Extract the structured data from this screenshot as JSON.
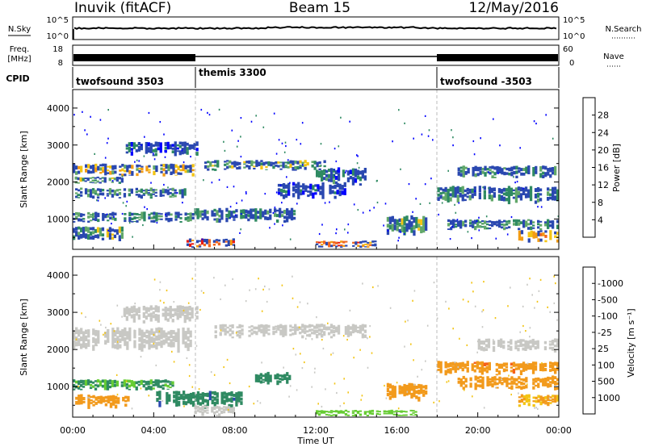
{
  "header": {
    "station": "Inuvik (fitACF)",
    "beam": "Beam 15",
    "date": "12/May/2016"
  },
  "summary_panels": {
    "nsky": {
      "label": "N.Sky",
      "ticks": [
        "10^5",
        "10^0"
      ]
    },
    "nsearch": {
      "label": "N.Search",
      "ticks": [
        "10^5",
        "10^0"
      ]
    },
    "freq": {
      "label_line1": "Freq.",
      "label_line2": "[MHz]",
      "ticks": [
        "18",
        "8"
      ]
    },
    "nave": {
      "label": "Nave",
      "ticks": [
        "60",
        "0"
      ]
    },
    "cpid": {
      "label": "CPID",
      "segments": [
        {
          "name": "twofsound 3503",
          "start_hour": 0,
          "end_hour": 6
        },
        {
          "name": "themis 3300",
          "start_hour": 6,
          "end_hour": 18
        },
        {
          "name": "twofsound -3503",
          "start_hour": 18,
          "end_hour": 24
        }
      ]
    }
  },
  "chart_data": [
    {
      "type": "heatmap",
      "panel": "power",
      "ylabel": "Slant Range [km]",
      "xlabel": "",
      "xlim": [
        0,
        24
      ],
      "ylim": [
        180,
        4500
      ],
      "yticks": [
        1000,
        2000,
        3000,
        4000
      ],
      "colorbar": {
        "label": "Power [dB]",
        "range": [
          0,
          32
        ],
        "ticks": [
          "4",
          "8",
          "12",
          "16",
          "20",
          "24",
          "28"
        ],
        "colors": [
          "#0000ff",
          "#2a48b0",
          "#2f8a62",
          "#62a86a",
          "#f3c414",
          "#f39c14",
          "#f0661e",
          "#e81a10"
        ]
      },
      "regions": [
        {
          "x": [
            0.0,
            6.0
          ],
          "y": [
            2150,
            2500
          ],
          "value": 19
        },
        {
          "x": [
            0.0,
            5.6
          ],
          "y": [
            1550,
            1850
          ],
          "value": 10
        },
        {
          "x": [
            0.1,
            2.5
          ],
          "y": [
            1950,
            2150
          ],
          "value": 12
        },
        {
          "x": [
            2.5,
            6.2
          ],
          "y": [
            2700,
            3100
          ],
          "value": 7
        },
        {
          "x": [
            0.0,
            6.0
          ],
          "y": [
            900,
            1200
          ],
          "value": 11
        },
        {
          "x": [
            0.0,
            2.5
          ],
          "y": [
            400,
            800
          ],
          "value": 15
        },
        {
          "x": [
            5.5,
            8.0
          ],
          "y": [
            220,
            480
          ],
          "value": 27
        },
        {
          "x": [
            6.0,
            11.0
          ],
          "y": [
            900,
            1300
          ],
          "value": 10
        },
        {
          "x": [
            6.5,
            12.5
          ],
          "y": [
            2300,
            2600
          ],
          "value": 14
        },
        {
          "x": [
            12.0,
            14.5
          ],
          "y": [
            1900,
            2400
          ],
          "value": 8
        },
        {
          "x": [
            10.0,
            13.5
          ],
          "y": [
            1500,
            2000
          ],
          "value": 6
        },
        {
          "x": [
            12.0,
            15.0
          ],
          "y": [
            220,
            420
          ],
          "value": 24
        },
        {
          "x": [
            15.5,
            17.5
          ],
          "y": [
            500,
            1100
          ],
          "value": 12
        },
        {
          "x": [
            18.0,
            24.0
          ],
          "y": [
            1400,
            1900
          ],
          "value": 9
        },
        {
          "x": [
            19.0,
            24.0
          ],
          "y": [
            2100,
            2450
          ],
          "value": 10
        },
        {
          "x": [
            18.5,
            24.0
          ],
          "y": [
            700,
            1000
          ],
          "value": 11
        },
        {
          "x": [
            22.0,
            24.0
          ],
          "y": [
            350,
            700
          ],
          "value": 21
        }
      ]
    },
    {
      "type": "heatmap",
      "panel": "velocity",
      "ylabel": "Slant Range [km]",
      "xlabel": "Time UT",
      "xlim": [
        0,
        24
      ],
      "ylim": [
        180,
        4500
      ],
      "yticks": [
        1000,
        2000,
        3000,
        4000
      ],
      "xticks": [
        "00:00",
        "04:00",
        "08:00",
        "12:00",
        "16:00",
        "20:00",
        "00:00"
      ],
      "colorbar": {
        "label": "Velocity [m s⁻¹]",
        "ticks": [
          "-1000",
          "-500",
          "-100",
          "-25",
          "25",
          "100",
          "500",
          "1000"
        ],
        "colors": [
          "#ee1010",
          "#f66018",
          "#f29a1c",
          "#f3c414",
          "#c8c8c4",
          "#66cc33",
          "#2f8a62",
          "#2a48b0",
          "#1030d0"
        ]
      },
      "regions": [
        {
          "x": [
            0.0,
            6.0
          ],
          "y": [
            1900,
            2600
          ],
          "value": 0
        },
        {
          "x": [
            2.5,
            6.2
          ],
          "y": [
            2700,
            3200
          ],
          "value": 0
        },
        {
          "x": [
            0.0,
            2.8
          ],
          "y": [
            400,
            800
          ],
          "value": -150
        },
        {
          "x": [
            0.0,
            5.0
          ],
          "y": [
            900,
            1200
          ],
          "value": 120
        },
        {
          "x": [
            4.0,
            8.5
          ],
          "y": [
            400,
            900
          ],
          "value": 400
        },
        {
          "x": [
            6.0,
            8.0
          ],
          "y": [
            200,
            500
          ],
          "value": 0
        },
        {
          "x": [
            7.0,
            14.5
          ],
          "y": [
            2300,
            2700
          ],
          "value": 0
        },
        {
          "x": [
            9.0,
            11.0
          ],
          "y": [
            1000,
            1400
          ],
          "value": 300
        },
        {
          "x": [
            12.0,
            17.0
          ],
          "y": [
            200,
            380
          ],
          "value": 60
        },
        {
          "x": [
            15.5,
            17.5
          ],
          "y": [
            600,
            1100
          ],
          "value": -300
        },
        {
          "x": [
            18.0,
            24.0
          ],
          "y": [
            1300,
            1700
          ],
          "value": -400
        },
        {
          "x": [
            19.0,
            24.0
          ],
          "y": [
            900,
            1300
          ],
          "value": -250
        },
        {
          "x": [
            20.0,
            24.0
          ],
          "y": [
            1900,
            2300
          ],
          "value": 0
        },
        {
          "x": [
            22.0,
            24.0
          ],
          "y": [
            450,
            800
          ],
          "value": -100
        }
      ]
    }
  ]
}
